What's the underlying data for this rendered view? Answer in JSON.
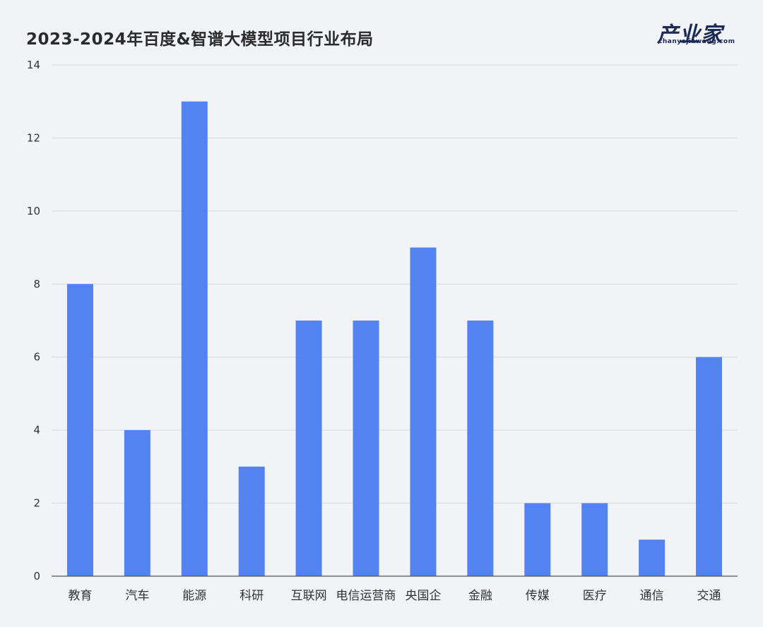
{
  "header": {
    "title": "2023-2024年百度&智谱大模型项目行业布局"
  },
  "logo": {
    "main": "产业家",
    "sub": "chanyejiawang.com"
  },
  "colors": {
    "bar": "#5283f0",
    "grid": "#d7d9de",
    "axis": "#555555",
    "background": "#f1f3f6"
  },
  "chart_data": {
    "type": "bar",
    "categories": [
      "教育",
      "汽车",
      "能源",
      "科研",
      "互联网",
      "电信运营商",
      "央国企",
      "金融",
      "传媒",
      "医疗",
      "通信",
      "交通"
    ],
    "values": [
      8,
      4,
      13,
      3,
      7,
      7,
      9,
      7,
      2,
      2,
      1,
      6
    ],
    "ylim": [
      0,
      14
    ],
    "yticks": [
      0,
      2,
      4,
      6,
      8,
      10,
      12,
      14
    ],
    "grid": true,
    "legend": "none"
  }
}
